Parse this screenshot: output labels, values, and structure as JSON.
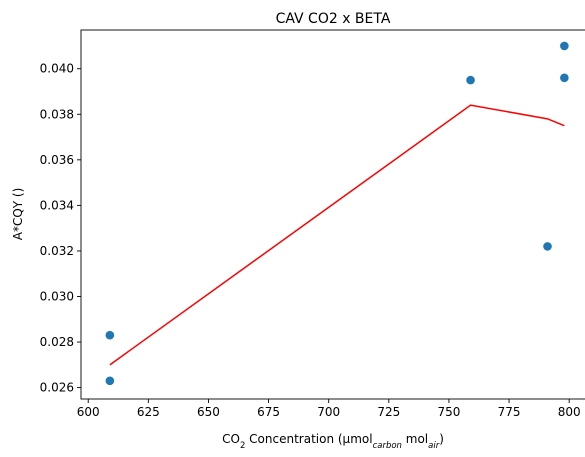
{
  "chart_data": {
    "type": "scatter",
    "title": "CAV CO2 x BETA",
    "xlabel": {
      "parts": [
        {
          "text": "CO",
          "style": "normal"
        },
        {
          "text": "2",
          "style": "sub"
        },
        {
          "text": " Concentration (µmol",
          "style": "normal"
        },
        {
          "text": "carbon",
          "style": "sub-italic"
        },
        {
          "text": " mol",
          "style": "normal"
        },
        {
          "text": "air",
          "style": "sub-italic"
        },
        {
          "text": ")",
          "style": "normal"
        }
      ]
    },
    "ylabel": "A*CQY ()",
    "xlim": [
      597,
      807
    ],
    "ylim": [
      0.0255,
      0.0417
    ],
    "xticks": [
      600,
      625,
      650,
      675,
      700,
      725,
      750,
      775,
      800
    ],
    "yticks": [
      0.026,
      0.028,
      0.03,
      0.032,
      0.034,
      0.036,
      0.038,
      0.04
    ],
    "ytick_decimals": 3,
    "grid": false,
    "series": [
      {
        "kind": "scatter",
        "color": "#1f77b4",
        "points": [
          {
            "x": 609,
            "y": 0.0283
          },
          {
            "x": 609,
            "y": 0.0263
          },
          {
            "x": 759,
            "y": 0.0395
          },
          {
            "x": 791,
            "y": 0.0322
          },
          {
            "x": 798,
            "y": 0.041
          },
          {
            "x": 798,
            "y": 0.0396
          }
        ]
      },
      {
        "kind": "line",
        "color": "#ff0000",
        "points": [
          {
            "x": 609,
            "y": 0.027
          },
          {
            "x": 759,
            "y": 0.0384
          },
          {
            "x": 791,
            "y": 0.0378
          },
          {
            "x": 798,
            "y": 0.0375
          }
        ]
      }
    ]
  }
}
